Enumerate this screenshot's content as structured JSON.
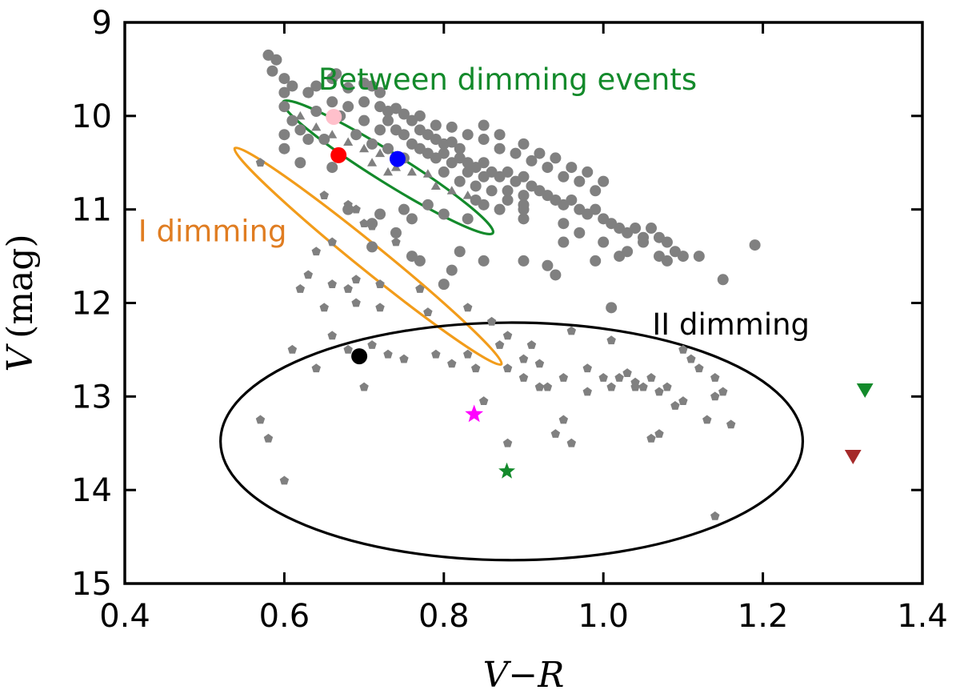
{
  "chart_data": {
    "type": "scatter",
    "title": "",
    "xlabel": "V−R",
    "ylabel_var": "V",
    "ylabel_unit": "(mag)",
    "xlim": [
      0.4,
      1.4
    ],
    "ylim": [
      15,
      9
    ],
    "y_inverted": true,
    "xticks": [
      0.4,
      0.6,
      0.8,
      1.0,
      1.2,
      1.4
    ],
    "xtick_labels": [
      "0.4",
      "0.6",
      "0.8",
      "1.0",
      "1.2",
      "1.4"
    ],
    "yticks": [
      9,
      10,
      11,
      12,
      13,
      14,
      15
    ],
    "ytick_labels": [
      "9",
      "10",
      "11",
      "12",
      "13",
      "14",
      "15"
    ],
    "grid": false,
    "colors": {
      "gray": "#808080",
      "green": "#138a2b",
      "orange": "#f29c1a",
      "orange_text": "#e07d22",
      "black": "#000000",
      "red": "#ff0000",
      "blue": "#0000ff",
      "pink": "#ffc0cb",
      "magenta": "#ff00ff",
      "darkred": "#a52a2a"
    },
    "annotations": [
      {
        "name": "between-label",
        "text": "Between dimming events",
        "x": 0.88,
        "y": 9.72,
        "color": "green"
      },
      {
        "name": "i-dimming-label",
        "text": "I dimming",
        "x": 0.51,
        "y": 11.34,
        "color": "orange_text"
      },
      {
        "name": "ii-dimming-label",
        "text": "II dimming",
        "x": 1.16,
        "y": 12.34,
        "color": "black"
      }
    ],
    "ellipses": [
      {
        "name": "between-ellipse",
        "cx": 0.73,
        "cy": 10.55,
        "rx": 0.155,
        "ry": 0.16,
        "angle_deg": 32,
        "color": "green",
        "group": "Between dimming events"
      },
      {
        "name": "i-dimming-ellipse",
        "cx": 0.705,
        "cy": 11.5,
        "rx": 0.215,
        "ry": 0.14,
        "angle_deg": 39,
        "color": "orange",
        "group": "I dimming"
      },
      {
        "name": "ii-dimming-ellipse",
        "cx": 0.885,
        "cy": 13.48,
        "rx": 0.365,
        "ry": 1.27,
        "angle_deg": 0,
        "color": "black",
        "group": "II dimming"
      }
    ],
    "series": [
      {
        "marker": "circle",
        "color": "gray",
        "size": 7,
        "points": [
          [
            0.58,
            9.35
          ],
          [
            0.59,
            9.4
          ],
          [
            0.585,
            9.52
          ],
          [
            0.6,
            9.6
          ],
          [
            0.6,
            9.75
          ],
          [
            0.61,
            9.68
          ],
          [
            0.63,
            9.75
          ],
          [
            0.64,
            9.68
          ],
          [
            0.66,
            9.6
          ],
          [
            0.665,
            9.55
          ],
          [
            0.68,
            9.7
          ],
          [
            0.7,
            9.65
          ],
          [
            0.71,
            9.68
          ],
          [
            0.72,
            9.75
          ],
          [
            0.6,
            9.9
          ],
          [
            0.6,
            10.2
          ],
          [
            0.61,
            10.05
          ],
          [
            0.62,
            10.15
          ],
          [
            0.63,
            10.25
          ],
          [
            0.64,
            9.95
          ],
          [
            0.66,
            9.85
          ],
          [
            0.68,
            9.9
          ],
          [
            0.67,
            10.0
          ],
          [
            0.7,
            9.85
          ],
          [
            0.72,
            9.9
          ],
          [
            0.74,
            9.92
          ],
          [
            0.7,
            10.05
          ],
          [
            0.73,
            10.05
          ],
          [
            0.76,
            10.05
          ],
          [
            0.72,
            10.15
          ],
          [
            0.74,
            10.15
          ],
          [
            0.75,
            10.2
          ],
          [
            0.77,
            10.15
          ],
          [
            0.78,
            10.2
          ],
          [
            0.79,
            10.25
          ],
          [
            0.8,
            10.3
          ],
          [
            0.81,
            10.28
          ],
          [
            0.82,
            10.35
          ],
          [
            0.76,
            10.3
          ],
          [
            0.77,
            10.35
          ],
          [
            0.78,
            10.4
          ],
          [
            0.79,
            10.45
          ],
          [
            0.8,
            10.4
          ],
          [
            0.81,
            10.5
          ],
          [
            0.82,
            10.45
          ],
          [
            0.83,
            10.5
          ],
          [
            0.84,
            10.55
          ],
          [
            0.85,
            10.5
          ],
          [
            0.86,
            10.6
          ],
          [
            0.83,
            10.6
          ],
          [
            0.85,
            10.65
          ],
          [
            0.87,
            10.65
          ],
          [
            0.88,
            10.6
          ],
          [
            0.89,
            10.7
          ],
          [
            0.9,
            10.65
          ],
          [
            0.91,
            10.75
          ],
          [
            0.88,
            10.8
          ],
          [
            0.9,
            10.85
          ],
          [
            0.92,
            10.8
          ],
          [
            0.93,
            10.85
          ],
          [
            0.94,
            10.9
          ],
          [
            0.95,
            10.95
          ],
          [
            0.96,
            10.9
          ],
          [
            0.97,
            11.0
          ],
          [
            0.98,
            11.05
          ],
          [
            0.99,
            11.0
          ],
          [
            1.0,
            11.1
          ],
          [
            1.01,
            11.15
          ],
          [
            1.02,
            11.2
          ],
          [
            1.03,
            11.25
          ],
          [
            1.04,
            11.2
          ],
          [
            1.05,
            11.3
          ],
          [
            0.73,
            9.95
          ],
          [
            0.75,
            9.98
          ],
          [
            0.77,
            10.0
          ],
          [
            0.79,
            10.1
          ],
          [
            0.81,
            10.12
          ],
          [
            0.83,
            10.2
          ],
          [
            0.85,
            10.25
          ],
          [
            0.87,
            10.35
          ],
          [
            0.89,
            10.4
          ],
          [
            0.91,
            10.48
          ],
          [
            0.93,
            10.55
          ],
          [
            0.95,
            10.65
          ],
          [
            0.97,
            10.7
          ],
          [
            0.99,
            10.8
          ],
          [
            0.69,
            10.2
          ],
          [
            0.71,
            10.3
          ],
          [
            0.73,
            10.35
          ],
          [
            0.75,
            10.45
          ],
          [
            0.8,
            10.6
          ],
          [
            0.82,
            10.7
          ],
          [
            0.84,
            10.75
          ],
          [
            0.86,
            10.8
          ],
          [
            0.88,
            10.9
          ],
          [
            0.9,
            10.95
          ],
          [
            0.85,
            10.1
          ],
          [
            0.87,
            10.2
          ],
          [
            0.9,
            10.3
          ],
          [
            0.92,
            10.4
          ],
          [
            0.94,
            10.45
          ],
          [
            0.96,
            10.55
          ],
          [
            0.98,
            10.6
          ],
          [
            1.0,
            10.7
          ],
          [
            0.66,
            10.55
          ],
          [
            0.62,
            10.5
          ],
          [
            0.65,
            10.25
          ],
          [
            0.72,
            11.05
          ],
          [
            0.71,
            11.15
          ],
          [
            0.76,
            11.1
          ],
          [
            0.8,
            11.05
          ],
          [
            0.83,
            11.1
          ],
          [
            0.84,
            10.9
          ],
          [
            0.87,
            11.0
          ],
          [
            0.9,
            11.1
          ],
          [
            0.95,
            11.35
          ],
          [
            0.97,
            11.25
          ],
          [
            1.0,
            11.35
          ],
          [
            1.03,
            11.45
          ],
          [
            1.05,
            11.35
          ],
          [
            1.07,
            11.3
          ],
          [
            1.08,
            11.35
          ],
          [
            1.09,
            11.45
          ],
          [
            1.08,
            11.55
          ],
          [
            1.1,
            11.5
          ],
          [
            1.07,
            11.5
          ],
          [
            1.12,
            11.5
          ],
          [
            1.15,
            11.75
          ],
          [
            1.19,
            11.38
          ],
          [
            1.02,
            11.5
          ],
          [
            0.99,
            11.55
          ],
          [
            0.93,
            11.6
          ],
          [
            0.9,
            11.55
          ],
          [
            0.85,
            11.55
          ],
          [
            0.77,
            11.55
          ],
          [
            0.81,
            11.65
          ],
          [
            0.8,
            11.8
          ],
          [
            0.76,
            11.5
          ],
          [
            0.82,
            11.45
          ],
          [
            0.9,
            11.0
          ],
          [
            0.95,
            11.15
          ],
          [
            1.06,
            11.2
          ],
          [
            0.78,
            10.95
          ],
          [
            0.74,
            11.25
          ],
          [
            0.71,
            11.4
          ],
          [
            1.01,
            12.05
          ],
          [
            0.94,
            11.7
          ],
          [
            0.75,
            11.0
          ],
          [
            0.85,
            10.95
          ]
        ]
      },
      {
        "marker": "triangle",
        "color": "gray",
        "size": 7,
        "points": [
          [
            0.62,
            10.0
          ],
          [
            0.64,
            10.12
          ],
          [
            0.66,
            10.2
          ],
          [
            0.68,
            10.28
          ],
          [
            0.7,
            10.35
          ],
          [
            0.72,
            10.4
          ],
          [
            0.74,
            10.55
          ],
          [
            0.76,
            10.6
          ],
          [
            0.78,
            10.62
          ],
          [
            0.79,
            10.75
          ],
          [
            0.81,
            10.8
          ],
          [
            0.83,
            10.85
          ],
          [
            0.71,
            10.5
          ],
          [
            0.73,
            10.6
          ]
        ]
      },
      {
        "marker": "pentagon",
        "color": "gray",
        "size": 6,
        "points": [
          [
            0.57,
            10.5
          ],
          [
            0.65,
            10.85
          ],
          [
            0.68,
            10.95
          ],
          [
            0.69,
            11.0
          ],
          [
            0.66,
            11.35
          ],
          [
            0.7,
            11.15
          ],
          [
            0.71,
            11.18
          ],
          [
            0.74,
            11.35
          ],
          [
            0.64,
            11.45
          ],
          [
            0.63,
            11.7
          ],
          [
            0.66,
            11.8
          ],
          [
            0.69,
            11.75
          ],
          [
            0.72,
            11.8
          ],
          [
            0.77,
            11.85
          ],
          [
            0.68,
            11.85
          ],
          [
            0.62,
            11.85
          ],
          [
            0.65,
            12.05
          ],
          [
            0.69,
            12.0
          ],
          [
            0.72,
            12.05
          ],
          [
            0.78,
            12.1
          ],
          [
            0.83,
            12.05
          ],
          [
            0.86,
            12.2
          ],
          [
            0.88,
            12.35
          ],
          [
            0.91,
            12.45
          ],
          [
            0.96,
            12.3
          ],
          [
            1.01,
            12.4
          ],
          [
            0.66,
            12.35
          ],
          [
            0.71,
            12.45
          ],
          [
            0.73,
            12.55
          ],
          [
            0.75,
            12.6
          ],
          [
            0.79,
            12.55
          ],
          [
            0.83,
            12.55
          ],
          [
            0.84,
            12.7
          ],
          [
            0.81,
            12.65
          ],
          [
            0.87,
            12.45
          ],
          [
            0.9,
            12.6
          ],
          [
            0.92,
            12.65
          ],
          [
            0.88,
            12.7
          ],
          [
            0.9,
            12.8
          ],
          [
            0.92,
            12.9
          ],
          [
            0.95,
            12.8
          ],
          [
            0.98,
            12.7
          ],
          [
            1.0,
            12.8
          ],
          [
            1.01,
            12.9
          ],
          [
            1.03,
            12.75
          ],
          [
            1.04,
            12.85
          ],
          [
            1.05,
            12.9
          ],
          [
            1.06,
            12.8
          ],
          [
            1.1,
            12.5
          ],
          [
            1.11,
            12.6
          ],
          [
            1.12,
            12.7
          ],
          [
            1.14,
            12.8
          ],
          [
            0.64,
            12.7
          ],
          [
            0.68,
            12.5
          ],
          [
            0.61,
            12.5
          ],
          [
            0.7,
            12.9
          ],
          [
            0.57,
            13.25
          ],
          [
            0.58,
            13.45
          ],
          [
            0.6,
            13.9
          ],
          [
            0.85,
            13.05
          ],
          [
            0.88,
            13.5
          ],
          [
            0.94,
            13.4
          ],
          [
            0.95,
            13.25
          ],
          [
            0.96,
            13.5
          ],
          [
            0.98,
            12.95
          ],
          [
            1.02,
            12.8
          ],
          [
            1.04,
            12.9
          ],
          [
            1.06,
            13.45
          ],
          [
            1.07,
            12.95
          ],
          [
            1.08,
            12.9
          ],
          [
            1.09,
            13.1
          ],
          [
            1.1,
            13.05
          ],
          [
            1.13,
            13.25
          ],
          [
            1.14,
            13.0
          ],
          [
            1.15,
            12.95
          ],
          [
            1.16,
            13.3
          ],
          [
            1.14,
            14.28
          ],
          [
            0.93,
            12.9
          ],
          [
            1.07,
            13.4
          ]
        ]
      },
      {
        "marker": "circle",
        "color": "gray",
        "size": 7,
        "points": [
          [
            0.68,
            11.0
          ],
          [
            0.6,
            10.35
          ]
        ]
      },
      {
        "marker": "circle",
        "color": "pink",
        "size": 10,
        "points": [
          [
            0.662,
            10.01
          ]
        ]
      },
      {
        "marker": "circle",
        "color": "red",
        "size": 10,
        "points": [
          [
            0.668,
            10.42
          ]
        ]
      },
      {
        "marker": "circle",
        "color": "blue",
        "size": 10,
        "points": [
          [
            0.742,
            10.46
          ]
        ]
      },
      {
        "marker": "circle",
        "color": "black",
        "size": 10,
        "points": [
          [
            0.694,
            12.57
          ]
        ]
      },
      {
        "marker": "star",
        "color": "magenta",
        "size": 12,
        "points": [
          [
            0.838,
            13.19
          ]
        ]
      },
      {
        "marker": "star",
        "color": "green",
        "size": 11,
        "points": [
          [
            0.879,
            13.8
          ]
        ]
      },
      {
        "marker": "triangle-down",
        "color": "green",
        "size": 12,
        "points": [
          [
            1.328,
            12.92
          ]
        ]
      },
      {
        "marker": "triangle-down",
        "color": "darkred",
        "size": 12,
        "points": [
          [
            1.313,
            13.63
          ]
        ]
      }
    ]
  }
}
